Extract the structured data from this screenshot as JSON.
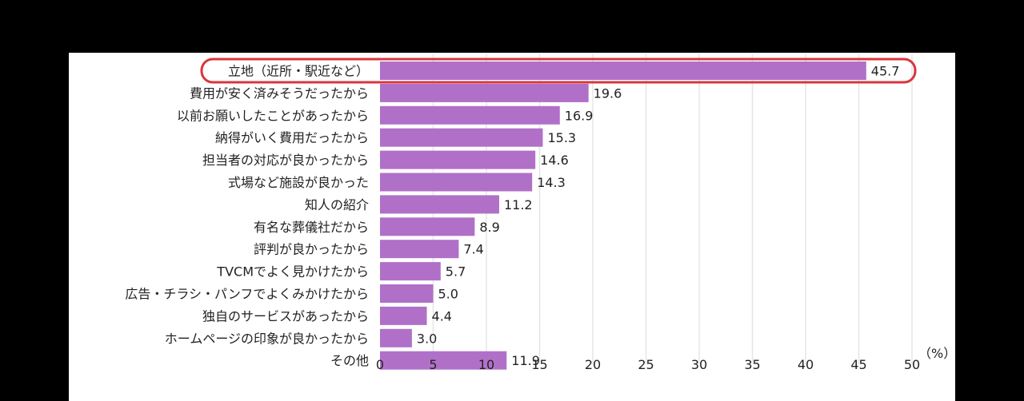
{
  "chart_data": {
    "type": "bar",
    "orientation": "horizontal",
    "categories": [
      "立地（近所・駅近など）",
      "費用が安く済みそうだったから",
      "以前お願いしたことがあったから",
      "納得がいく費用だったから",
      "担当者の対応が良かったから",
      "式場など施設が良かった",
      "知人の紹介",
      "有名な葬儀社だから",
      "評判が良かったから",
      "TVCMでよく見かけたから",
      "広告・チラシ・パンフでよくみかけたから",
      "独自のサービスがあったから",
      "ホームページの印象が良かったから",
      "その他"
    ],
    "values": [
      45.7,
      19.6,
      16.9,
      15.3,
      14.6,
      14.3,
      11.2,
      8.9,
      7.4,
      5.7,
      5.0,
      4.4,
      3.0,
      11.9
    ],
    "value_labels": [
      "45.7",
      "19.6",
      "16.9",
      "15.3",
      "14.6",
      "14.3",
      "11.2",
      "8.9",
      "7.4",
      "5.7",
      "5.0",
      "4.4",
      "3.0",
      "11.9"
    ],
    "xlim": [
      0,
      50
    ],
    "xticks": [
      "0",
      "5",
      "10",
      "15",
      "20",
      "25",
      "30",
      "35",
      "40",
      "45",
      "50"
    ],
    "unit": "（%）",
    "grid": true,
    "highlight_index": 0,
    "colors": {
      "bar": "#b070c8",
      "grid": "#e6e6e6",
      "highlight": "#d9363e",
      "text": "#222222"
    }
  }
}
